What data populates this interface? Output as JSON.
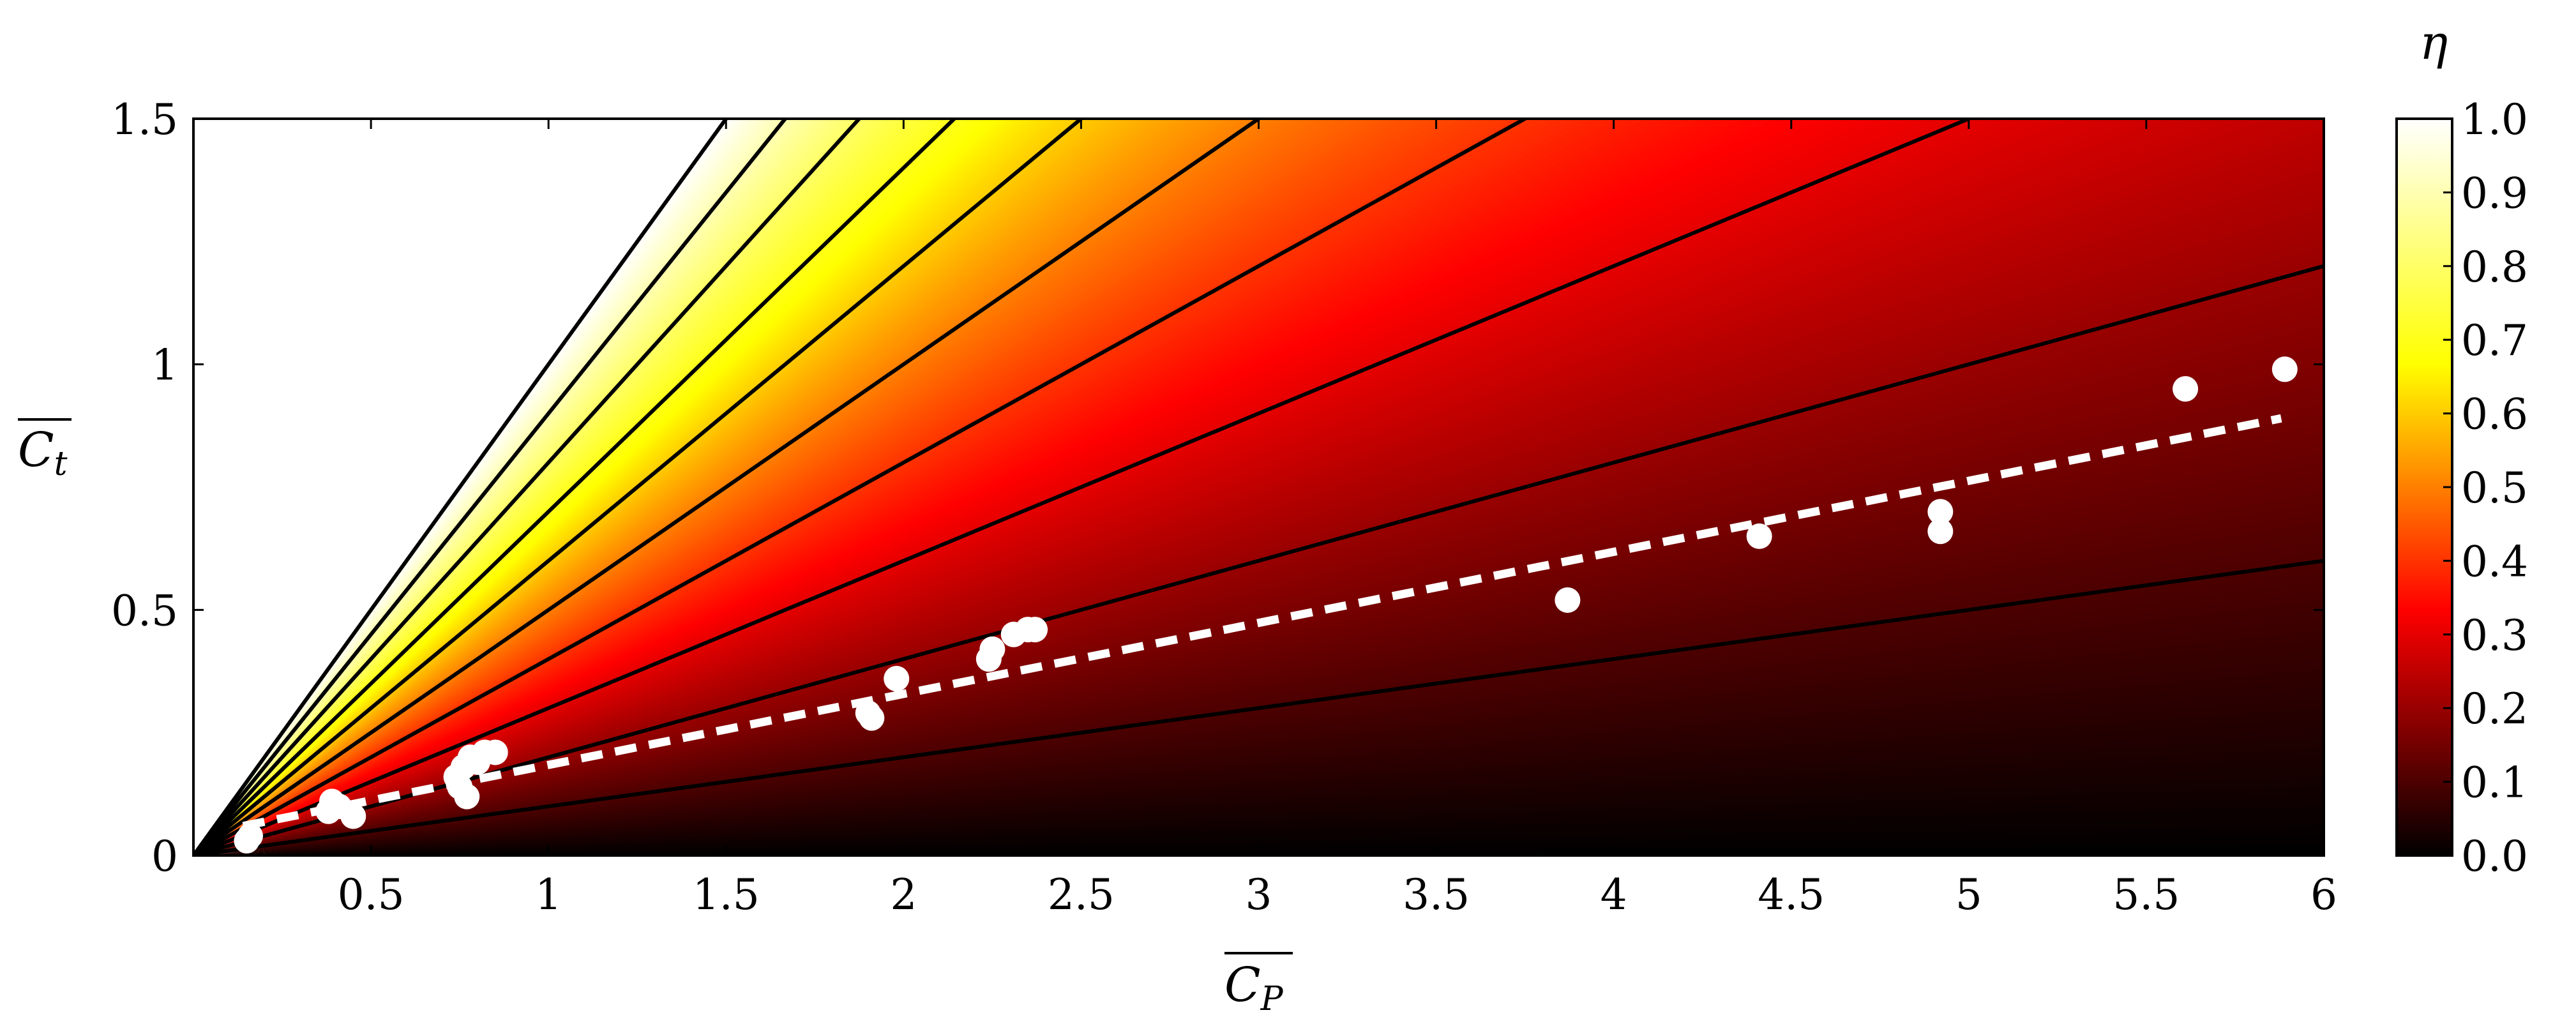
{
  "chart_data": {
    "type": "heatmap",
    "xlabel": "C",
    "xlabel_sub": "P",
    "ylabel": "C",
    "ylabel_sub": "t",
    "xlim": [
      0,
      6
    ],
    "ylim": [
      0,
      1.5
    ],
    "x_ticks": [
      {
        "value": 0.5,
        "label": "0.5"
      },
      {
        "value": 1,
        "label": "1"
      },
      {
        "value": 1.5,
        "label": "1.5"
      },
      {
        "value": 2,
        "label": "2"
      },
      {
        "value": 2.5,
        "label": "2.5"
      },
      {
        "value": 3,
        "label": "3"
      },
      {
        "value": 3.5,
        "label": "3.5"
      },
      {
        "value": 4,
        "label": "4"
      },
      {
        "value": 4.5,
        "label": "4.5"
      },
      {
        "value": 5,
        "label": "5"
      },
      {
        "value": 5.5,
        "label": "5.5"
      },
      {
        "value": 6,
        "label": "6"
      }
    ],
    "y_ticks": [
      {
        "value": 0,
        "label": "0"
      },
      {
        "value": 0.5,
        "label": "0.5"
      },
      {
        "value": 1,
        "label": "1"
      },
      {
        "value": 1.5,
        "label": "1.5"
      }
    ],
    "colorbar": {
      "title": "η",
      "range": [
        0,
        1
      ],
      "ticks": [
        {
          "value": 0.0,
          "label": "0.0"
        },
        {
          "value": 0.1,
          "label": "0.1"
        },
        {
          "value": 0.2,
          "label": "0.2"
        },
        {
          "value": 0.3,
          "label": "0.3"
        },
        {
          "value": 0.4,
          "label": "0.4"
        },
        {
          "value": 0.5,
          "label": "0.5"
        },
        {
          "value": 0.6,
          "label": "0.6"
        },
        {
          "value": 0.7,
          "label": "0.7"
        },
        {
          "value": 0.8,
          "label": "0.8"
        },
        {
          "value": 0.9,
          "label": "0.9"
        },
        {
          "value": 1.0,
          "label": "1.0"
        }
      ],
      "colormap": [
        "#000000",
        "#ff0000",
        "#ffff00",
        "#ffffff"
      ]
    },
    "efficiency_field": "eta = Ct / Cp (clipped to 0..1)",
    "contour_levels": [
      0.1,
      0.2,
      0.3,
      0.4,
      0.5,
      0.6,
      0.7,
      0.8,
      0.9,
      1.0
    ],
    "contour_color": "#000000",
    "scatter": {
      "color": "#ffffff",
      "points": [
        [
          0.15,
          0.03
        ],
        [
          0.16,
          0.04
        ],
        [
          0.38,
          0.09
        ],
        [
          0.39,
          0.11
        ],
        [
          0.41,
          0.1
        ],
        [
          0.45,
          0.08
        ],
        [
          0.74,
          0.16
        ],
        [
          0.75,
          0.14
        ],
        [
          0.76,
          0.18
        ],
        [
          0.77,
          0.12
        ],
        [
          0.78,
          0.2
        ],
        [
          0.8,
          0.19
        ],
        [
          0.82,
          0.21
        ],
        [
          0.85,
          0.21
        ],
        [
          1.9,
          0.29
        ],
        [
          1.91,
          0.28
        ],
        [
          1.98,
          0.36
        ],
        [
          2.24,
          0.4
        ],
        [
          2.25,
          0.42
        ],
        [
          2.31,
          0.45
        ],
        [
          2.35,
          0.46
        ],
        [
          2.37,
          0.46
        ],
        [
          3.87,
          0.52
        ],
        [
          4.41,
          0.65
        ],
        [
          4.92,
          0.7
        ],
        [
          4.92,
          0.66
        ],
        [
          5.61,
          0.95
        ],
        [
          5.89,
          0.99
        ]
      ]
    },
    "fit_line": {
      "style": "dashed",
      "color": "#ffffff",
      "points": [
        [
          0.14,
          0.06
        ],
        [
          5.88,
          0.89
        ]
      ]
    }
  }
}
